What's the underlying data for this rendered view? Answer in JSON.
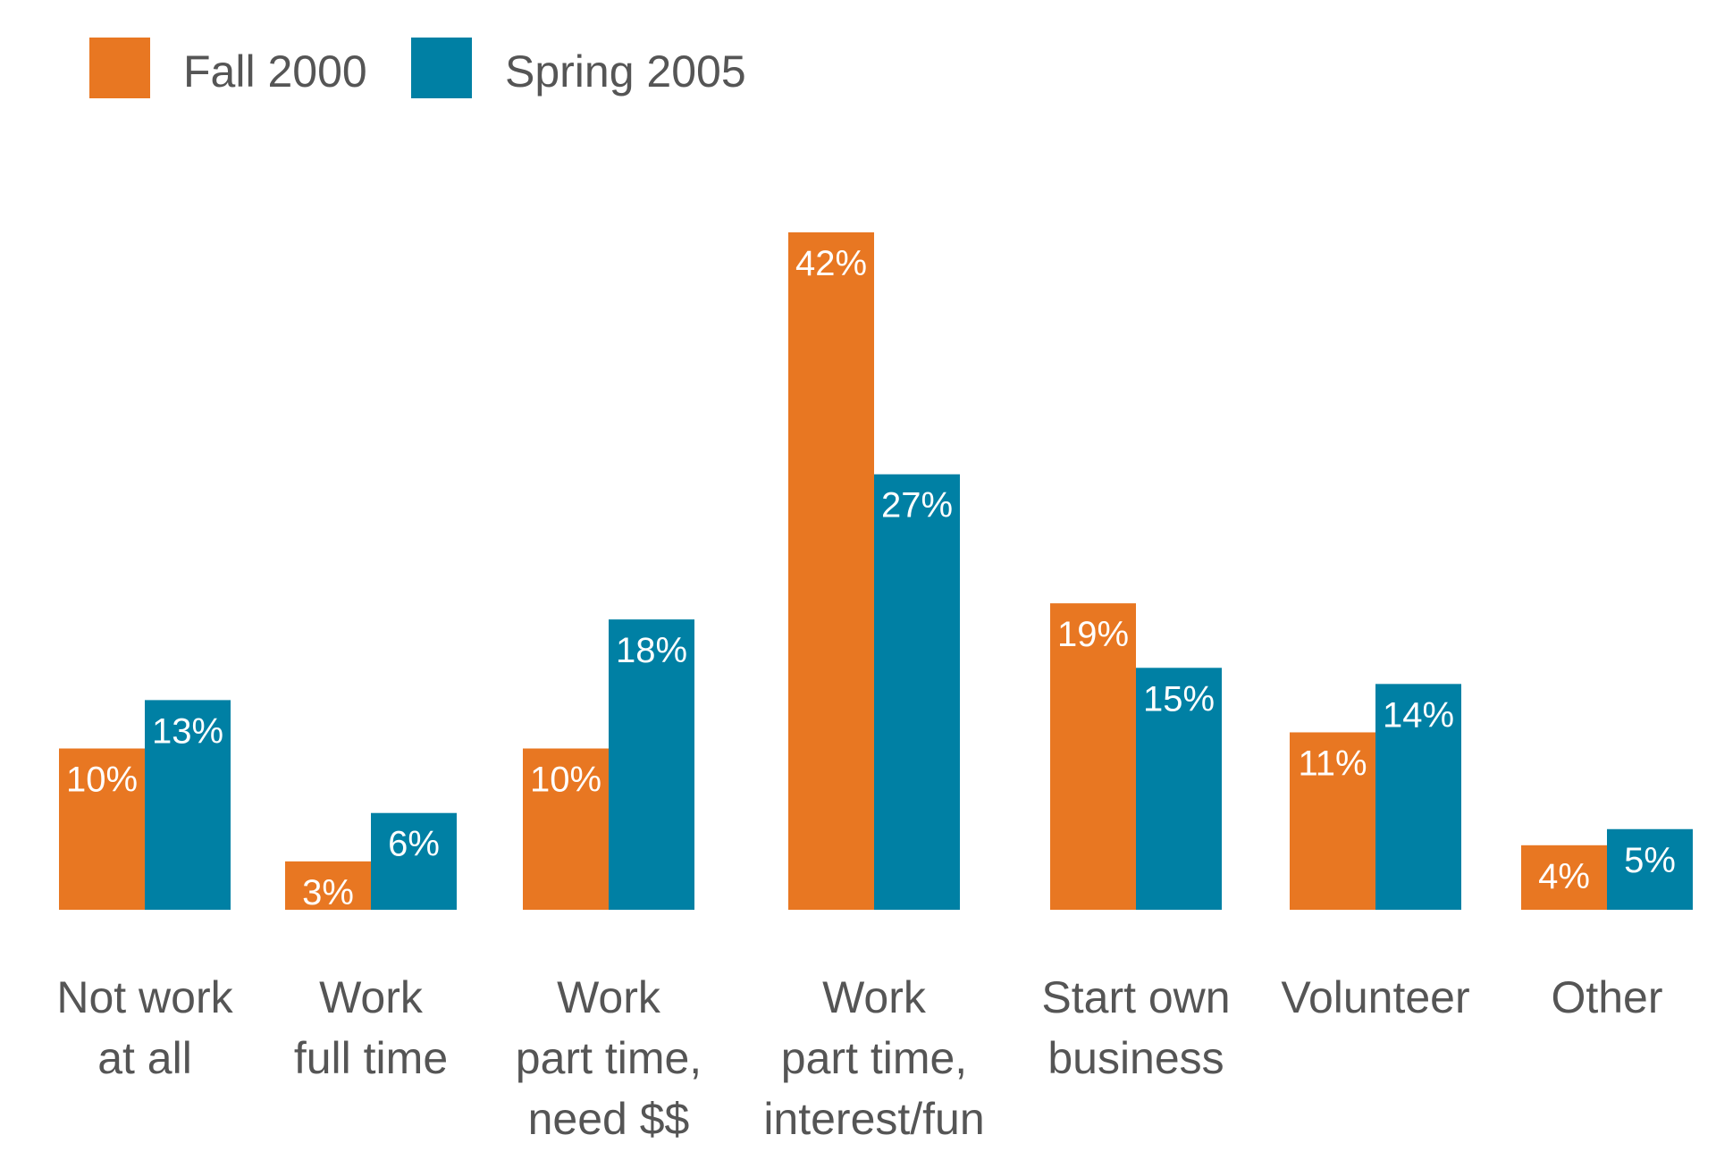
{
  "chart_data": {
    "type": "bar",
    "categories": [
      [
        "Not work",
        "at all"
      ],
      [
        "Work",
        "full time"
      ],
      [
        "Work",
        "part time,",
        "need $$"
      ],
      [
        "Work",
        "part time,",
        "interest/fun"
      ],
      [
        "Start own",
        "business"
      ],
      [
        "Volunteer"
      ],
      [
        "Other"
      ]
    ],
    "series": [
      {
        "name": "Fall 2000",
        "color": "#E87722",
        "values": [
          10,
          3,
          10,
          42,
          19,
          11,
          4
        ],
        "labels": [
          "10%",
          "3%",
          "10%",
          "42%",
          "19%",
          "11%",
          "4%"
        ]
      },
      {
        "name": "Spring 2005",
        "color": "#0080A4",
        "values": [
          13,
          6,
          18,
          27,
          15,
          14,
          5
        ],
        "labels": [
          "13%",
          "6%",
          "18%",
          "27%",
          "15%",
          "14%",
          "5%"
        ]
      }
    ],
    "ylim": [
      0,
      42
    ],
    "legend_position": "top-left",
    "grid": false
  }
}
